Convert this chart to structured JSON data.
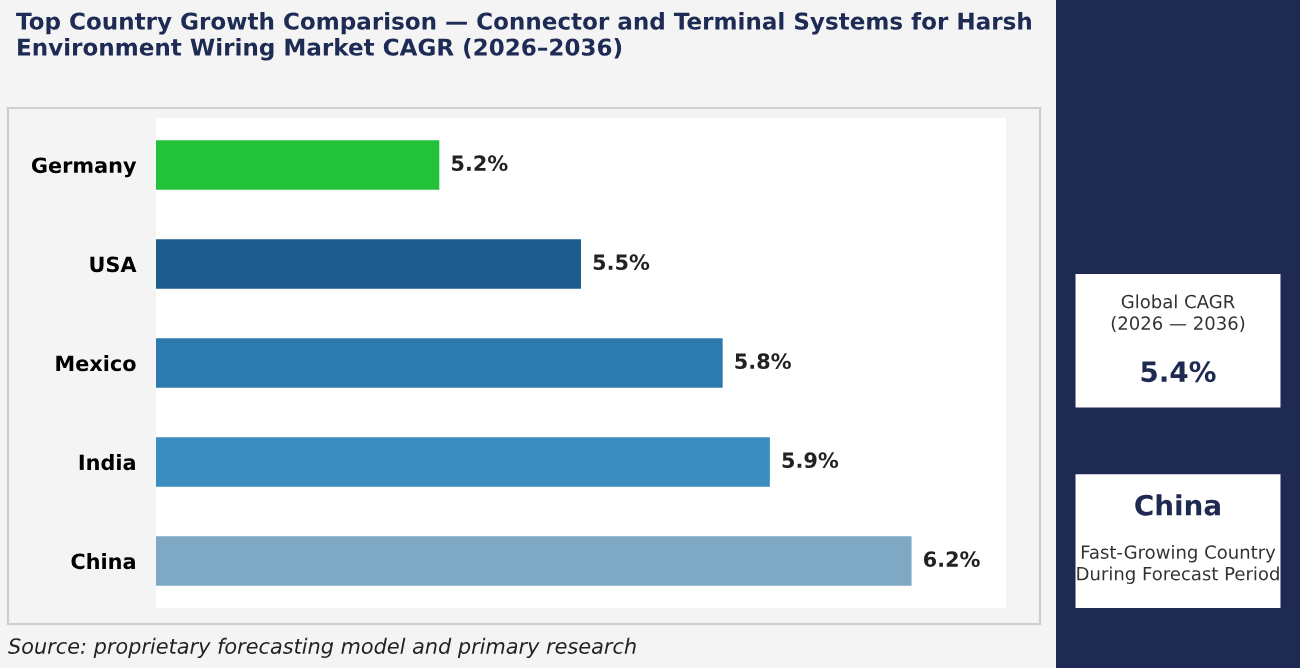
{
  "chart_data": [
    {
      "type": "bar",
      "orientation": "horizontal",
      "title": "Top Country Growth Comparison — Connector and Terminal Systems for Harsh\nEnvironment Wiring Market CAGR (2026–2036)",
      "categories": [
        "Germany",
        "USA",
        "Mexico",
        "India",
        "China"
      ],
      "values": [
        5.2,
        5.5,
        5.8,
        5.9,
        6.2
      ],
      "value_labels": [
        "5.2%",
        "5.5%",
        "5.8%",
        "5.9%",
        "6.2%"
      ],
      "colors": [
        "#22c33a",
        "#1d5e8e",
        "#2c7ab0",
        "#3b8cbf",
        "#7ea8c3"
      ],
      "xlim": [
        4.6,
        6.4
      ],
      "tick_labels": "y",
      "grid": false,
      "annotations": [
        "Source: proprietary forecasting model and primary research"
      ]
    },
    {
      "type": "other",
      "annotations": [
        "Global CAGR\n(2026 — 2036)",
        "5.4%",
        "China",
        "Fast-Growing Country\nDuring Forecast Period"
      ]
    }
  ]
}
